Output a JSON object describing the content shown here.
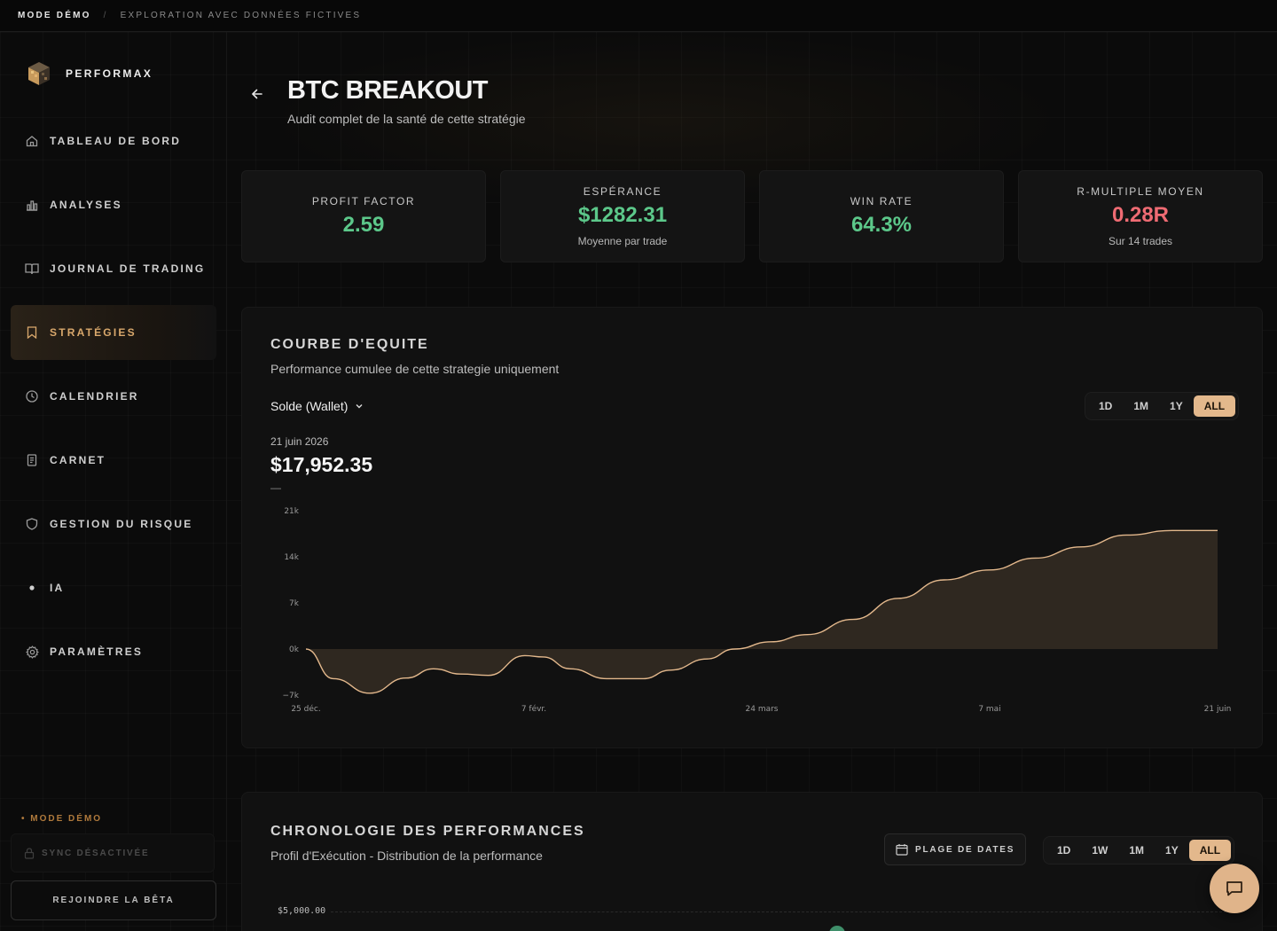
{
  "topbar": {
    "mode": "MODE DÉMO",
    "separator": "/",
    "subtitle": "EXPLORATION AVEC DONNÉES FICTIVES"
  },
  "brand": {
    "name": "PERFORMAX"
  },
  "nav": [
    {
      "label": "TABLEAU DE BORD",
      "icon": "home-icon",
      "active": false
    },
    {
      "label": "ANALYSES",
      "icon": "bar-chart-icon",
      "active": false
    },
    {
      "label": "JOURNAL DE TRADING",
      "icon": "book-icon",
      "active": false
    },
    {
      "label": "STRATÉGIES",
      "icon": "bookmark-icon",
      "active": true
    },
    {
      "label": "CALENDRIER",
      "icon": "clock-icon",
      "active": false
    },
    {
      "label": "CARNET",
      "icon": "notebook-icon",
      "active": false
    },
    {
      "label": "GESTION DU RISQUE",
      "icon": "shield-icon",
      "active": false
    },
    {
      "label": "IA",
      "icon": "dot-icon",
      "active": false
    },
    {
      "label": "PARAMÈTRES",
      "icon": "gear-icon",
      "active": false
    }
  ],
  "sidebar_footer": {
    "demo_badge": "• MODE DÉMO",
    "sync_label": "SYNC DÉSACTIVÉE",
    "beta_button": "REJOINDRE LA BÊTA"
  },
  "header": {
    "title": "BTC BREAKOUT",
    "subtitle": "Audit complet de la santé de cette stratégie"
  },
  "kpis": [
    {
      "title": "PROFIT FACTOR",
      "value": "2.59",
      "sub": "",
      "color": "#5cc88a"
    },
    {
      "title": "ESPÉRANCE",
      "value": "$1282.31",
      "sub": "Moyenne par trade",
      "color": "#5cc88a"
    },
    {
      "title": "WIN RATE",
      "value": "64.3%",
      "sub": "",
      "color": "#5cc88a"
    },
    {
      "title": "R-MULTIPLE MOYEN",
      "value": "0.28R",
      "sub": "Sur 14 trades",
      "color": "#ef6b73"
    }
  ],
  "equity": {
    "title": "COURBE D'EQUITE",
    "subtitle": "Performance cumulee de cette strategie uniquement",
    "dropdown": "Solde (Wallet)",
    "ranges": [
      "1D",
      "1M",
      "1Y",
      "ALL"
    ],
    "active_range": "ALL",
    "date": "21 juin 2026",
    "value": "$17,952.35",
    "change": "—"
  },
  "chart_data": {
    "type": "area",
    "title": "",
    "xlabel": "",
    "ylabel": "",
    "y_ticks": [
      "21k",
      "14k",
      "7k",
      "0k",
      "−7k"
    ],
    "y_tick_values": [
      21000,
      14000,
      7000,
      0,
      -7000
    ],
    "x_ticks": [
      "25 déc.",
      "7 févr.",
      "24 mars",
      "7 mai",
      "21 juin"
    ],
    "ylim": [
      -7000,
      21000
    ],
    "grid": false,
    "x": [
      0,
      3,
      7,
      11,
      14,
      17,
      20,
      24,
      26,
      29,
      33,
      37,
      40,
      44,
      47,
      51,
      55,
      60,
      65,
      70,
      75,
      80,
      85,
      90,
      95,
      98,
      100
    ],
    "values": [
      0,
      -4500,
      -6700,
      -4400,
      -3000,
      -3800,
      -4000,
      -1000,
      -1200,
      -3000,
      -4500,
      -4500,
      -3200,
      -1500,
      0,
      1100,
      2200,
      4500,
      7700,
      10500,
      12000,
      13800,
      15500,
      17300,
      18000,
      18000,
      18000
    ],
    "line_color": "#e3b88c"
  },
  "timeline": {
    "title": "CHRONOLOGIE DES PERFORMANCES",
    "subtitle": "Profil d'Exécution - Distribution de la performance",
    "date_range_button": "PLAGE DE DATES",
    "ranges": [
      "1D",
      "1W",
      "1M",
      "1Y",
      "ALL"
    ],
    "active_range": "ALL",
    "y_tick_top": "$5,000.00"
  }
}
